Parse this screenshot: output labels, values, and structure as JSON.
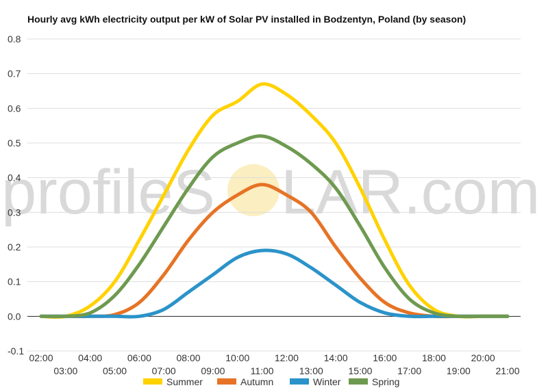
{
  "watermark": {
    "left": "profileS",
    "right": "LAR.com",
    "sun_color": "#fbeec0"
  },
  "chart_data": {
    "type": "line",
    "title": "Hourly avg kWh electricity output per kW of Solar PV installed in Bodzentyn, Poland (by season)",
    "xlabel": "",
    "ylabel": "",
    "ylim": [
      -0.1,
      0.8
    ],
    "yticks": [
      "-0.1",
      "0.0",
      "0.1",
      "0.2",
      "0.3",
      "0.4",
      "0.5",
      "0.6",
      "0.7",
      "0.8"
    ],
    "x": [
      "02:00",
      "03:00",
      "04:00",
      "05:00",
      "06:00",
      "07:00",
      "08:00",
      "09:00",
      "10:00",
      "11:00",
      "12:00",
      "13:00",
      "14:00",
      "15:00",
      "16:00",
      "17:00",
      "18:00",
      "19:00",
      "20:00",
      "21:00"
    ],
    "grid": true,
    "legend_position": "bottom",
    "series": [
      {
        "name": "Summer",
        "color": "#ffd200",
        "values": [
          0.0,
          0.0,
          0.03,
          0.1,
          0.22,
          0.35,
          0.48,
          0.58,
          0.62,
          0.67,
          0.64,
          0.58,
          0.5,
          0.37,
          0.22,
          0.09,
          0.02,
          0.0,
          0.0,
          0.0
        ]
      },
      {
        "name": "Autumn",
        "color": "#e67326",
        "values": [
          0.0,
          0.0,
          0.0,
          0.005,
          0.04,
          0.12,
          0.22,
          0.3,
          0.35,
          0.38,
          0.35,
          0.3,
          0.2,
          0.11,
          0.04,
          0.01,
          0.0,
          0.0,
          0.0,
          0.0
        ]
      },
      {
        "name": "Winter",
        "color": "#2b93c9",
        "values": [
          0.0,
          0.0,
          0.0,
          0.0,
          0.0,
          0.02,
          0.07,
          0.12,
          0.17,
          0.19,
          0.18,
          0.14,
          0.09,
          0.04,
          0.01,
          0.0,
          0.0,
          0.0,
          0.0,
          0.0
        ]
      },
      {
        "name": "Spring",
        "color": "#6e9a50",
        "values": [
          0.0,
          0.0,
          0.01,
          0.06,
          0.15,
          0.26,
          0.37,
          0.46,
          0.5,
          0.52,
          0.49,
          0.44,
          0.37,
          0.26,
          0.14,
          0.05,
          0.01,
          0.0,
          0.0,
          0.0
        ]
      }
    ]
  }
}
